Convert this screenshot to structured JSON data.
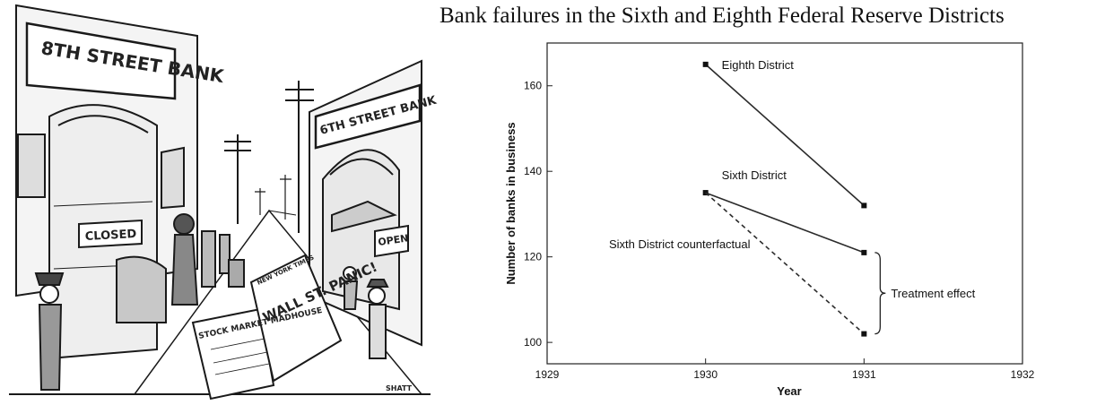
{
  "title": "Bank failures in the Sixth and Eighth Federal Reserve Districts",
  "cartoon": {
    "sign_left": "8TH STREET BANK",
    "sign_right": "6TH STREET BANK",
    "sign_closed": "CLOSED",
    "sign_open": "OPEN",
    "paper_left": "STOCK MARKET MADHOUSE",
    "paper_masthead": "NEW YORK TIMES",
    "paper_headline": "WALL ST. PANIC!",
    "signature": "SHATT"
  },
  "colors": {
    "line": "#2b2b2b",
    "ink": "#1a1a1a"
  },
  "chart_data": {
    "type": "line",
    "title": "",
    "xlabel": "Year",
    "ylabel": "Number of banks in business",
    "xlim": [
      1929,
      1932
    ],
    "ylim": [
      95,
      170
    ],
    "x_ticks": [
      1929,
      1930,
      1931,
      1932
    ],
    "y_ticks": [
      100,
      120,
      140,
      160
    ],
    "series": [
      {
        "name": "Eighth District",
        "x": [
          1930,
          1931
        ],
        "y": [
          165,
          132
        ],
        "style": "solid"
      },
      {
        "name": "Sixth District",
        "x": [
          1930,
          1931
        ],
        "y": [
          135,
          121
        ],
        "style": "solid"
      },
      {
        "name": "Sixth District counterfactual",
        "x": [
          1930,
          1931
        ],
        "y": [
          135,
          102
        ],
        "style": "dashed"
      }
    ],
    "annotations": [
      {
        "text": "Treatment effect",
        "x": 1931,
        "y_range": [
          102,
          121
        ]
      }
    ],
    "grid": false
  }
}
